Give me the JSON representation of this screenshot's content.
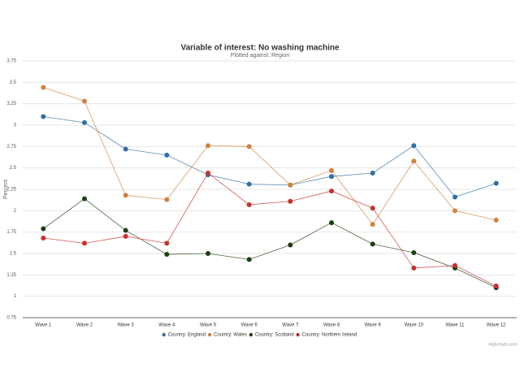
{
  "chart_data": {
    "type": "line",
    "title": "Variable of interest: No washing machine",
    "subtitle": "Plotted against: Region",
    "y_label": "Percent",
    "credit": "Highcharts.com",
    "categories": [
      "Wave 1",
      "Wave 2",
      "Wave 3",
      "Wave 4",
      "Wave 5",
      "Wave 6",
      "Wave 7",
      "Wave 8",
      "Wave 9",
      "Wave 10",
      "Wave 11",
      "Wave 12"
    ],
    "series": [
      {
        "name": "Country: England",
        "color": "#2f6fa7",
        "values": [
          3.1,
          3.03,
          2.72,
          2.65,
          2.42,
          2.31,
          2.3,
          2.4,
          2.44,
          2.76,
          2.16,
          2.32
        ]
      },
      {
        "name": "Country: Wales",
        "color": "#d0813d",
        "values": [
          3.44,
          3.28,
          2.18,
          2.13,
          2.76,
          2.75,
          2.3,
          2.47,
          1.84,
          2.58,
          2.0,
          1.89
        ]
      },
      {
        "name": "Country: Scotland",
        "color": "#1e3d12",
        "values": [
          1.79,
          2.14,
          1.77,
          1.49,
          1.5,
          1.43,
          1.6,
          1.86,
          1.61,
          1.51,
          1.33,
          1.1
        ]
      },
      {
        "name": "Country: Northern Ireland",
        "color": "#c9302c",
        "values": [
          1.68,
          1.62,
          1.7,
          1.62,
          2.44,
          2.07,
          2.11,
          2.23,
          2.03,
          1.33,
          1.36,
          1.12
        ]
      }
    ],
    "ylim": [
      0.75,
      3.75
    ],
    "yticks": [
      0.75,
      1,
      1.25,
      1.5,
      1.75,
      2,
      2.25,
      2.5,
      2.75,
      3,
      3.25,
      3.5,
      3.75
    ],
    "grid": true,
    "legend": "bottom"
  }
}
